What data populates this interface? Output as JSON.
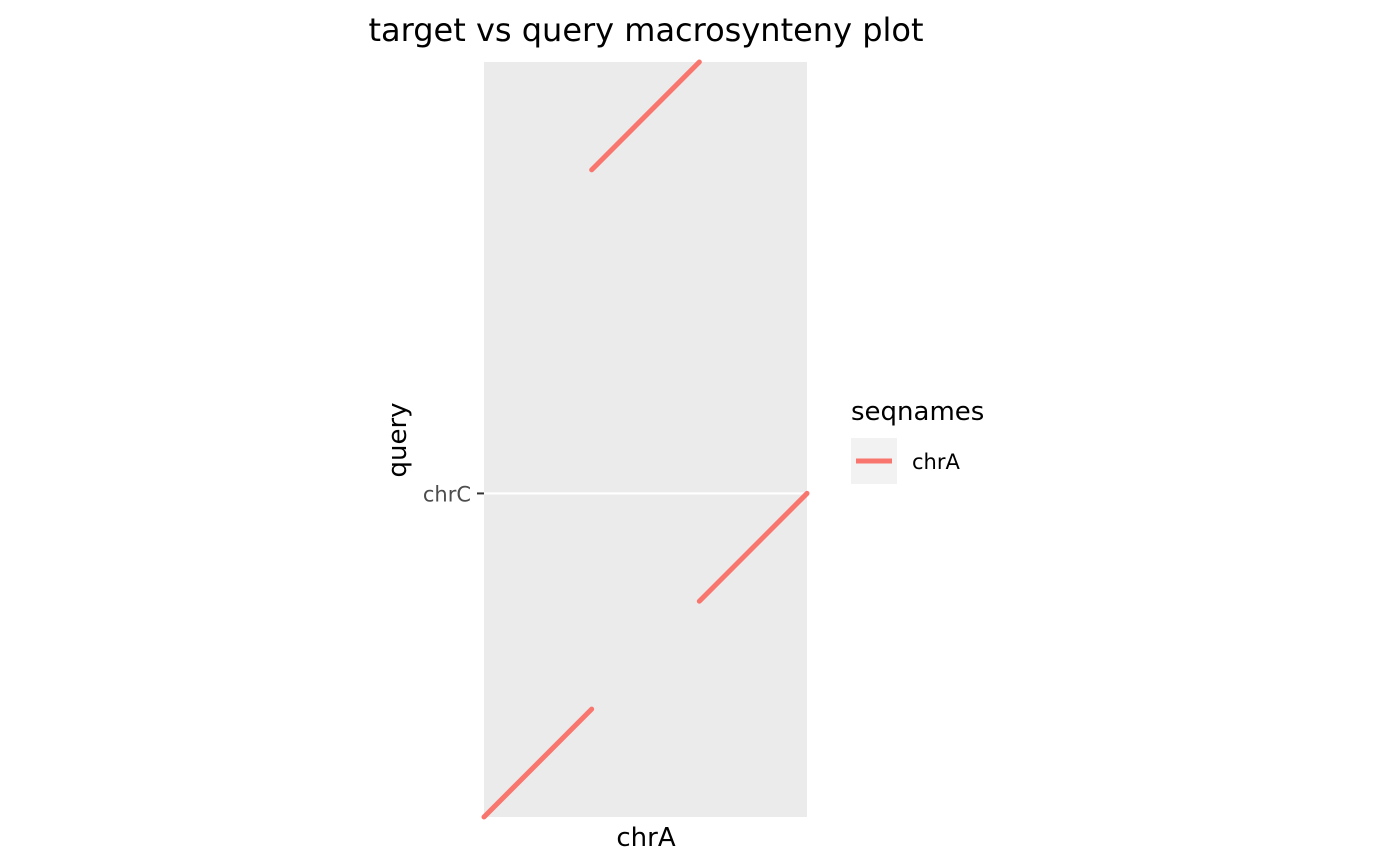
{
  "chart_data": {
    "type": "line",
    "title": "target vs query macrosynteny plot",
    "xlabel": "chrA",
    "ylabel": "query",
    "xlim": [
      0,
      3
    ],
    "ylim": [
      0,
      7
    ],
    "y_ticks": [
      {
        "value": 3,
        "label": "chrC"
      }
    ],
    "y_gridlines": [
      3
    ],
    "grid": true,
    "panel_background": "#ebebeb",
    "legend": {
      "title": "seqnames",
      "placement": "right",
      "entries": [
        {
          "label": "chrA",
          "color": "#f8766d"
        }
      ]
    },
    "series": [
      {
        "name": "chrA",
        "color": "#f8766d",
        "segments": [
          {
            "x": [
              0,
              1
            ],
            "y": [
              0,
              1
            ]
          },
          {
            "x": [
              2,
              3
            ],
            "y": [
              2,
              3
            ]
          },
          {
            "x": [
              1,
              2
            ],
            "y": [
              6,
              7
            ]
          }
        ]
      }
    ]
  }
}
